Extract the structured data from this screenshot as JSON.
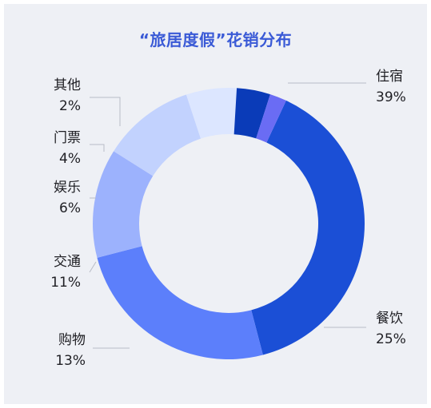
{
  "chart_data": {
    "type": "pie",
    "title": "“旅居度假”花销分布",
    "donut": true,
    "start_angle_deg": -65,
    "slices": [
      {
        "label": "住宿",
        "value": 39,
        "value_label": "39%",
        "color": "#1b4fd6"
      },
      {
        "label": "餐饮",
        "value": 25,
        "value_label": "25%",
        "color": "#5c7ffb"
      },
      {
        "label": "购物",
        "value": 13,
        "value_label": "13%",
        "color": "#9cb2fd"
      },
      {
        "label": "交通",
        "value": 11,
        "value_label": "11%",
        "color": "#c2d2fe"
      },
      {
        "label": "娱乐",
        "value": 6,
        "value_label": "6%",
        "color": "#dce6ff"
      },
      {
        "label": "门票",
        "value": 4,
        "value_label": "4%",
        "color": "#0a3bb8"
      },
      {
        "label": "其他",
        "value": 2,
        "value_label": "2%",
        "color": "#6a6cf4"
      }
    ]
  }
}
